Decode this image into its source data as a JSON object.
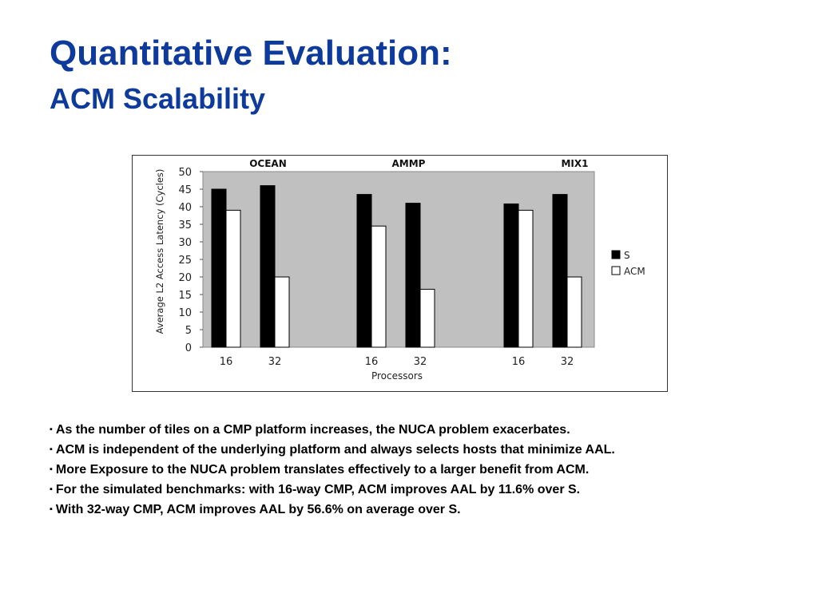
{
  "slide": {
    "title": "Quantitative Evaluation:",
    "subtitle": "ACM Scalability",
    "bullet_marker": "▪",
    "bullets": [
      "As the number of tiles on a CMP platform increases, the NUCA problem exacerbates.",
      "ACM is independent of the underlying platform and always selects hosts that minimize AAL.",
      "More Exposure to the NUCA problem translates effectively to a larger benefit from ACM.",
      "For the simulated benchmarks: with 16-way CMP, ACM improves AAL by 11.6% over S.",
      "With 32-way CMP, ACM improves AAL by 56.6% on average over S."
    ]
  },
  "chart_data": {
    "type": "bar",
    "xlabel": "Processors",
    "ylabel": "Average L2 Access Latency (Cycles)",
    "ylim": [
      0,
      50
    ],
    "yticks": [
      0,
      5,
      10,
      15,
      20,
      25,
      30,
      35,
      40,
      45,
      50
    ],
    "grid": false,
    "legend_position": "right",
    "plot_background": "#c0c0c0",
    "groups": [
      {
        "name": "OCEAN",
        "categories": [
          "16",
          "32"
        ]
      },
      {
        "name": "AMMP",
        "categories": [
          "16",
          "32"
        ]
      },
      {
        "name": "MIX1",
        "categories": [
          "16",
          "32"
        ]
      }
    ],
    "series": [
      {
        "name": "S",
        "color": "#000000",
        "values": [
          45,
          46,
          43.5,
          41,
          40.8,
          43.5
        ]
      },
      {
        "name": "ACM",
        "color": "#ffffff",
        "values": [
          39,
          20,
          34.5,
          16.5,
          39,
          20
        ]
      }
    ]
  }
}
